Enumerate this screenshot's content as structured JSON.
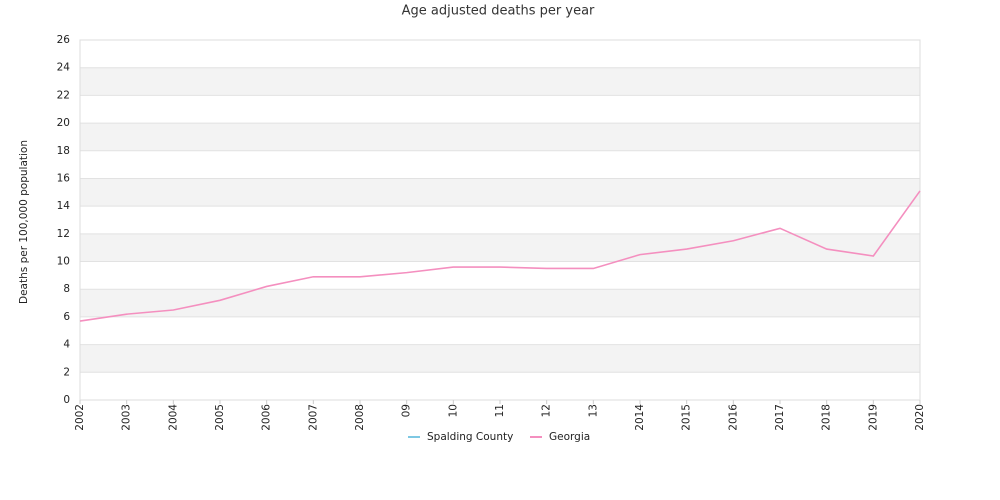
{
  "chart_data": {
    "type": "line",
    "title": "Age adjusted deaths per year",
    "y_label": "Deaths per 100,000 population",
    "categories": [
      "2002",
      "2003",
      "2004",
      "2005",
      "2006",
      "2007",
      "2008",
      "09",
      "10",
      "11",
      "12",
      "13",
      "2014",
      "2015",
      "2016",
      "2017",
      "2018",
      "2019",
      "2020"
    ],
    "series": [
      {
        "name": "Spalding County",
        "color": "#7ec8e3",
        "values": [
          null,
          null,
          null,
          null,
          null,
          null,
          null,
          null,
          null,
          null,
          null,
          null,
          null,
          null,
          null,
          null,
          null,
          null,
          null
        ]
      },
      {
        "name": "Georgia",
        "color": "#f48fbf",
        "values": [
          5.7,
          6.2,
          6.5,
          7.2,
          8.2,
          8.9,
          8.9,
          9.2,
          9.6,
          9.6,
          9.5,
          9.5,
          10.5,
          10.9,
          11.5,
          12.4,
          10.9,
          10.4,
          15.1
        ]
      }
    ],
    "ylim": [
      0,
      26
    ],
    "yticks": [
      0,
      2,
      4,
      6,
      8,
      10,
      12,
      14,
      16,
      18,
      20,
      22,
      24,
      26
    ],
    "grid": true,
    "legend": "bottom"
  }
}
